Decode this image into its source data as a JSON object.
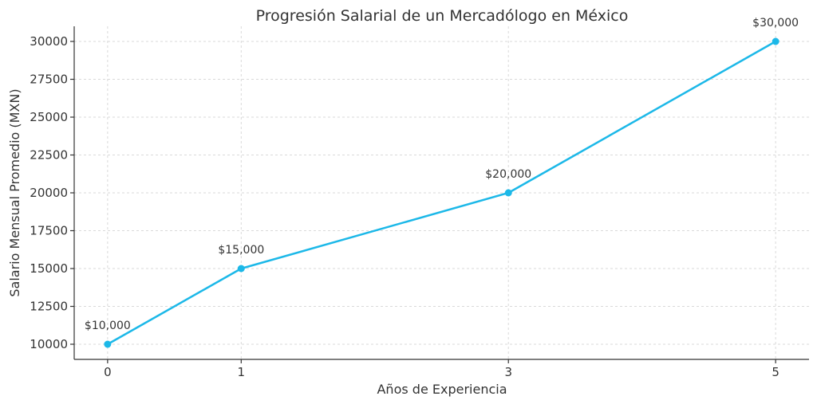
{
  "chart_data": {
    "type": "line",
    "title": "Progresión Salarial de un Mercadólogo en México",
    "xlabel": "Años de Experiencia",
    "ylabel": "Salario Mensual Promedio (MXN)",
    "x": [
      0,
      1,
      3,
      5
    ],
    "xticks": [
      "0",
      "1",
      "3",
      "5"
    ],
    "xlim": [
      -0.25,
      5.25
    ],
    "yticks": [
      10000,
      12500,
      15000,
      17500,
      20000,
      22500,
      25000,
      27500,
      30000
    ],
    "ylim": [
      9000,
      31000
    ],
    "grid": true,
    "series": [
      {
        "values": [
          10000,
          15000,
          20000,
          30000
        ],
        "labels": [
          "$10,000",
          "$15,000",
          "$20,000",
          "$30,000"
        ],
        "color": "#1cb8e8"
      }
    ]
  }
}
